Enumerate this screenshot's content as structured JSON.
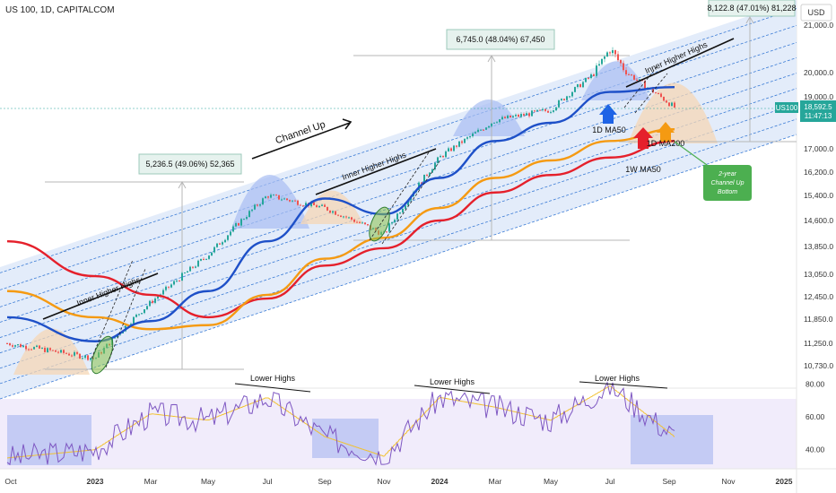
{
  "header": {
    "symbol_title": "US 100, 1D, CAPITALCOM"
  },
  "price_scale": {
    "currency": "USD",
    "ticks": [
      "21,000.0",
      "20,000.0",
      "19,000.0",
      "17,000.0",
      "16,200.0",
      "15,400.0",
      "14,600.0",
      "13,850.0",
      "13,050.0",
      "12,450.0",
      "11,850.0",
      "11,250.0",
      "10,730.0"
    ]
  },
  "price_tag": {
    "symbol": "US100",
    "price": "18,592.5",
    "countdown": "11:47:13"
  },
  "rsi_scale": {
    "ticks": [
      "80.00",
      "60.00",
      "40.00"
    ]
  },
  "time_axis": {
    "labels": [
      "Oct",
      "2023",
      "Mar",
      "May",
      "Jul",
      "Sep",
      "Nov",
      "2024",
      "Mar",
      "May",
      "Jul",
      "Sep",
      "Nov",
      "2025"
    ]
  },
  "annotations": {
    "channel_up": "Channel Up",
    "inner_higher_highs": "Inner Higher Highs",
    "lower_highs": "Lower Highs",
    "ma50_1d": "1D MA50",
    "ma200_1d": "1D MA200",
    "ma50_1w": "1W MA50",
    "callout_bottom": [
      "2-year",
      "Channel Up",
      "Bottom"
    ],
    "measure_1": "5,236.5 (49.06%) 52,365",
    "measure_2": "6,745.0 (48.04%) 67,450",
    "measure_3": "8,122.8 (47.01%) 81,228"
  },
  "colors": {
    "channel": "#3a7bd5",
    "channel_fill": "#e3ecfa",
    "ma50_1d": "#1e50c8",
    "ma200_1d": "#f59a12",
    "ma50_1w": "#e5202b",
    "rsi": "#7e57c2",
    "rsi_ma": "#f2c12e",
    "candle_up": "#26a69a",
    "candle_down": "#ef5350",
    "tag": "#26a69a",
    "callout": "#4caf50"
  },
  "chart_data": {
    "type": "line",
    "title": "US 100, 1D, CAPITALCOM",
    "ylim": [
      10600,
      21700
    ],
    "x": [
      "Oct 2022",
      "2023",
      "Mar 2023",
      "May 2023",
      "Jul 2023",
      "Sep 2023",
      "Nov 2023",
      "2024",
      "Mar 2024",
      "May 2024",
      "Jul 2024",
      "Sep 2024"
    ],
    "series": [
      {
        "name": "Price",
        "values": [
          11250,
          10900,
          12300,
          13600,
          15400,
          15000,
          14200,
          16700,
          18100,
          18500,
          20500,
          18592.5
        ]
      },
      {
        "name": "1D MA50",
        "values": [
          11900,
          11300,
          11800,
          12600,
          14000,
          15300,
          14800,
          16000,
          17300,
          18000,
          19200,
          19400
        ]
      },
      {
        "name": "1D MA200",
        "values": [
          12600,
          11900,
          11600,
          11700,
          12500,
          13500,
          14100,
          15000,
          16000,
          16600,
          17300,
          17750
        ]
      },
      {
        "name": "1W MA50",
        "values": [
          14000,
          13000,
          12500,
          11900,
          12400,
          13300,
          13800,
          14600,
          15500,
          16100,
          16700,
          17300
        ]
      }
    ],
    "rsi": {
      "ylim": [
        30,
        82
      ],
      "values": [
        35,
        40,
        62,
        58,
        72,
        48,
        36,
        72,
        66,
        58,
        79,
        48
      ]
    },
    "grid": false
  }
}
